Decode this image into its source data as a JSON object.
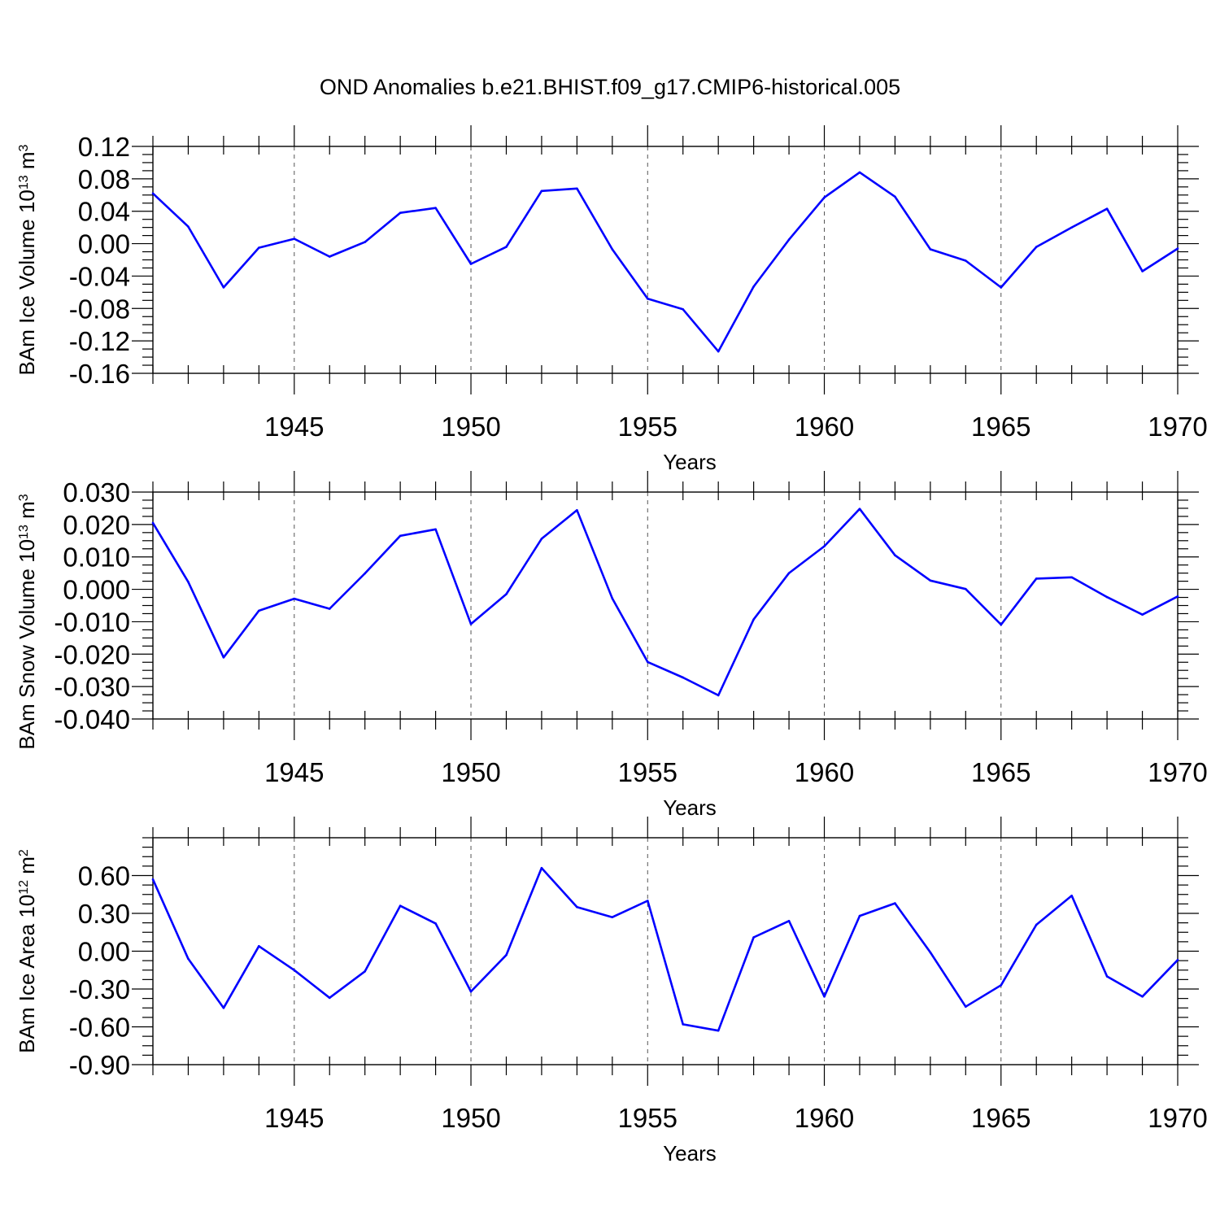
{
  "figure_title": "OND Anomalies b.e21.BHIST.f09_g17.CMIP6-historical.005",
  "chart_data": [
    {
      "type": "line",
      "ylabel": "BAm Ice Volume 10",
      "ylabel_exponent": "13",
      "ylabel_unit": " m",
      "ylabel_unit_exponent": "3",
      "xlabel": "Years",
      "xlim": [
        1941,
        1970
      ],
      "ylim": [
        -0.16,
        0.12
      ],
      "yticks": [
        -0.16,
        -0.12,
        -0.08,
        -0.04,
        0.0,
        0.04,
        0.08,
        0.12
      ],
      "ytick_labels": [
        "-0.16",
        "-0.12",
        "-0.08",
        "-0.04",
        "0.00",
        "0.04",
        "0.08",
        "0.12"
      ],
      "xticks": [
        1945,
        1950,
        1955,
        1960,
        1965,
        1970
      ],
      "xtick_labels": [
        "1945",
        "1950",
        "1955",
        "1960",
        "1965",
        "1970"
      ],
      "grid": "dashed vertical at major x ticks",
      "series_color": "#0000ff",
      "x": [
        1941,
        1942,
        1943,
        1944,
        1945,
        1946,
        1947,
        1948,
        1949,
        1950,
        1951,
        1952,
        1953,
        1954,
        1955,
        1956,
        1957,
        1958,
        1959,
        1960,
        1961,
        1962,
        1963,
        1964,
        1965,
        1966,
        1967,
        1968,
        1969,
        1970
      ],
      "y": [
        0.062,
        0.021,
        -0.054,
        -0.005,
        0.006,
        -0.016,
        0.002,
        0.038,
        0.044,
        -0.025,
        -0.004,
        0.065,
        0.068,
        -0.007,
        -0.068,
        -0.081,
        -0.133,
        -0.053,
        0.005,
        0.057,
        0.088,
        0.058,
        -0.007,
        -0.021,
        -0.054,
        -0.004,
        0.02,
        0.043,
        -0.034,
        -0.006
      ]
    },
    {
      "type": "line",
      "ylabel": "BAm Snow Volume 10",
      "ylabel_exponent": "13",
      "ylabel_unit": " m",
      "ylabel_unit_exponent": "3",
      "xlabel": "Years",
      "xlim": [
        1941,
        1970
      ],
      "ylim": [
        -0.04,
        0.03
      ],
      "yticks": [
        -0.04,
        -0.03,
        -0.02,
        -0.01,
        0.0,
        0.01,
        0.02,
        0.03
      ],
      "ytick_labels": [
        "-0.040",
        "-0.030",
        "-0.020",
        "-0.010",
        "0.000",
        "0.010",
        "0.020",
        "0.030"
      ],
      "xticks": [
        1945,
        1950,
        1955,
        1960,
        1965,
        1970
      ],
      "xtick_labels": [
        "1945",
        "1950",
        "1955",
        "1960",
        "1965",
        "1970"
      ],
      "grid": "dashed vertical at major x ticks",
      "series_color": "#0000ff",
      "x": [
        1941,
        1942,
        1943,
        1944,
        1945,
        1946,
        1947,
        1948,
        1949,
        1950,
        1951,
        1952,
        1953,
        1954,
        1955,
        1956,
        1957,
        1958,
        1959,
        1960,
        1961,
        1962,
        1963,
        1964,
        1965,
        1966,
        1967,
        1968,
        1969,
        1970
      ],
      "y": [
        0.0205,
        0.0023,
        -0.021,
        -0.0066,
        -0.0029,
        -0.006,
        0.0049,
        0.0165,
        0.0185,
        -0.0107,
        -0.0015,
        0.0156,
        0.0244,
        -0.0028,
        -0.0224,
        -0.0272,
        -0.0327,
        -0.0093,
        0.005,
        0.0133,
        0.0248,
        0.0105,
        0.0027,
        0.0001,
        -0.0109,
        0.0033,
        0.0037,
        -0.0024,
        -0.0078,
        -0.0022
      ]
    },
    {
      "type": "line",
      "ylabel": "BAm Ice Area 10",
      "ylabel_exponent": "12",
      "ylabel_unit": " m",
      "ylabel_unit_exponent": "2",
      "xlabel": "Years",
      "xlim": [
        1941,
        1970
      ],
      "ylim": [
        -0.9,
        0.9
      ],
      "yticks": [
        -0.9,
        -0.6,
        -0.3,
        0.0,
        0.3,
        0.6
      ],
      "ytick_labels": [
        "-0.90",
        "-0.60",
        "-0.30",
        "0.00",
        "0.30",
        "0.60"
      ],
      "xticks": [
        1945,
        1950,
        1955,
        1960,
        1965,
        1970
      ],
      "xtick_labels": [
        "1945",
        "1950",
        "1955",
        "1960",
        "1965",
        "1970"
      ],
      "grid": "dashed vertical at major x ticks",
      "series_color": "#0000ff",
      "x": [
        1941,
        1942,
        1943,
        1944,
        1945,
        1946,
        1947,
        1948,
        1949,
        1950,
        1951,
        1952,
        1953,
        1954,
        1955,
        1956,
        1957,
        1958,
        1959,
        1960,
        1961,
        1962,
        1963,
        1964,
        1965,
        1966,
        1967,
        1968,
        1969,
        1970
      ],
      "y": [
        0.57,
        -0.06,
        -0.45,
        0.04,
        -0.15,
        -0.37,
        -0.16,
        0.36,
        0.22,
        -0.32,
        -0.03,
        0.66,
        0.35,
        0.27,
        0.4,
        -0.58,
        -0.63,
        0.11,
        0.24,
        -0.36,
        0.28,
        0.38,
        -0.01,
        -0.44,
        -0.27,
        0.21,
        0.44,
        -0.2,
        -0.36,
        -0.07
      ]
    }
  ]
}
